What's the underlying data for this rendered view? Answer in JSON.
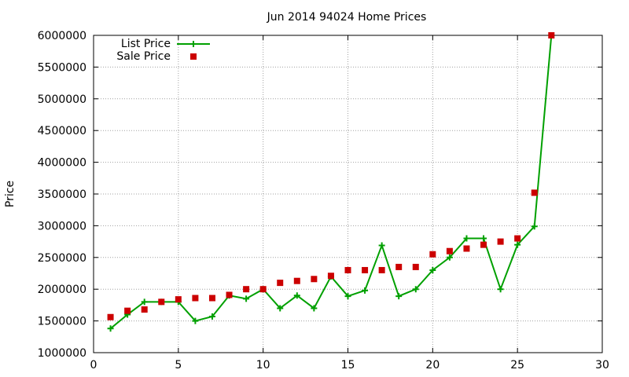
{
  "chart_data": {
    "type": "line",
    "title": "Jun 2014 94024 Home Prices",
    "xlabel": "",
    "ylabel": "Price",
    "xlim": [
      0,
      30
    ],
    "ylim": [
      1000000,
      6000000
    ],
    "x_ticks": [
      "0",
      "5",
      "10",
      "15",
      "20",
      "25",
      "30"
    ],
    "y_ticks": [
      "1000000",
      "1500000",
      "2000000",
      "2500000",
      "3000000",
      "3500000",
      "4000000",
      "4500000",
      "5000000",
      "5500000",
      "6000000"
    ],
    "grid": true,
    "legend_position": "top-left",
    "series": [
      {
        "name": "List Price",
        "style": "line-with-plus",
        "color": "#00a000",
        "x": [
          1,
          2,
          3,
          4,
          5,
          6,
          7,
          8,
          9,
          10,
          11,
          12,
          13,
          14,
          15,
          16,
          17,
          18,
          19,
          20,
          21,
          22,
          23,
          24,
          25,
          26,
          27
        ],
        "values": [
          1380000,
          1600000,
          1800000,
          1800000,
          1800000,
          1500000,
          1570000,
          1900000,
          1850000,
          2000000,
          1700000,
          1900000,
          1700000,
          2200000,
          1890000,
          1980000,
          2690000,
          1890000,
          2000000,
          2300000,
          2500000,
          2800000,
          2800000,
          2000000,
          2700000,
          2990000,
          6000000
        ]
      },
      {
        "name": "Sale Price",
        "style": "square-points",
        "color": "#cc0000",
        "x": [
          1,
          2,
          3,
          4,
          5,
          6,
          7,
          8,
          9,
          10,
          11,
          12,
          13,
          14,
          15,
          16,
          17,
          18,
          19,
          20,
          21,
          22,
          23,
          24,
          25,
          26,
          27
        ],
        "values": [
          1560000,
          1660000,
          1680000,
          1800000,
          1840000,
          1860000,
          1860000,
          1910000,
          2000000,
          2000000,
          2100000,
          2130000,
          2160000,
          2210000,
          2300000,
          2300000,
          2300000,
          2350000,
          2350000,
          2550000,
          2600000,
          2640000,
          2700000,
          2750000,
          2800000,
          3520000,
          6000000
        ]
      }
    ]
  }
}
